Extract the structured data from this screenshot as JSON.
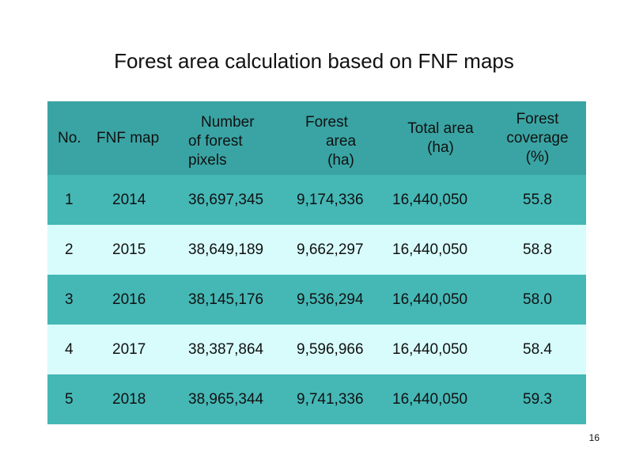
{
  "title": "Forest area calculation based on FNF maps",
  "table": {
    "headers": {
      "no": "No.",
      "fnf_map": "FNF map",
      "pixels": [
        "Number",
        "of forest",
        "pixels"
      ],
      "forest_area": [
        "Forest",
        "area",
        "(ha)"
      ],
      "total_area": [
        "Total area",
        "(ha)"
      ],
      "coverage": [
        "Forest",
        "coverage",
        "(%)"
      ]
    },
    "rows": [
      {
        "no": "1",
        "map": "2014",
        "pixels": "36,697,345",
        "forest": "9,174,336",
        "total": "16,440,050",
        "coverage": "55.8"
      },
      {
        "no": "2",
        "map": "2015",
        "pixels": "38,649,189",
        "forest": "9,662,297",
        "total": "16,440,050",
        "coverage": "58.8"
      },
      {
        "no": "3",
        "map": "2016",
        "pixels": "38,145,176",
        "forest": "9,536,294",
        "total": "16,440,050",
        "coverage": "58.0"
      },
      {
        "no": "4",
        "map": "2017",
        "pixels": "38,387,864",
        "forest": "9,596,966",
        "total": "16,440,050",
        "coverage": "58.4"
      },
      {
        "no": "5",
        "map": "2018",
        "pixels": "38,965,344",
        "forest": "9,741,336",
        "total": "16,440,050",
        "coverage": "59.3"
      }
    ]
  },
  "page_number": "16",
  "colors": {
    "header_bg": "#3aa4a4",
    "row_teal": "#45b8b6",
    "row_light": "#d8fcfc"
  }
}
